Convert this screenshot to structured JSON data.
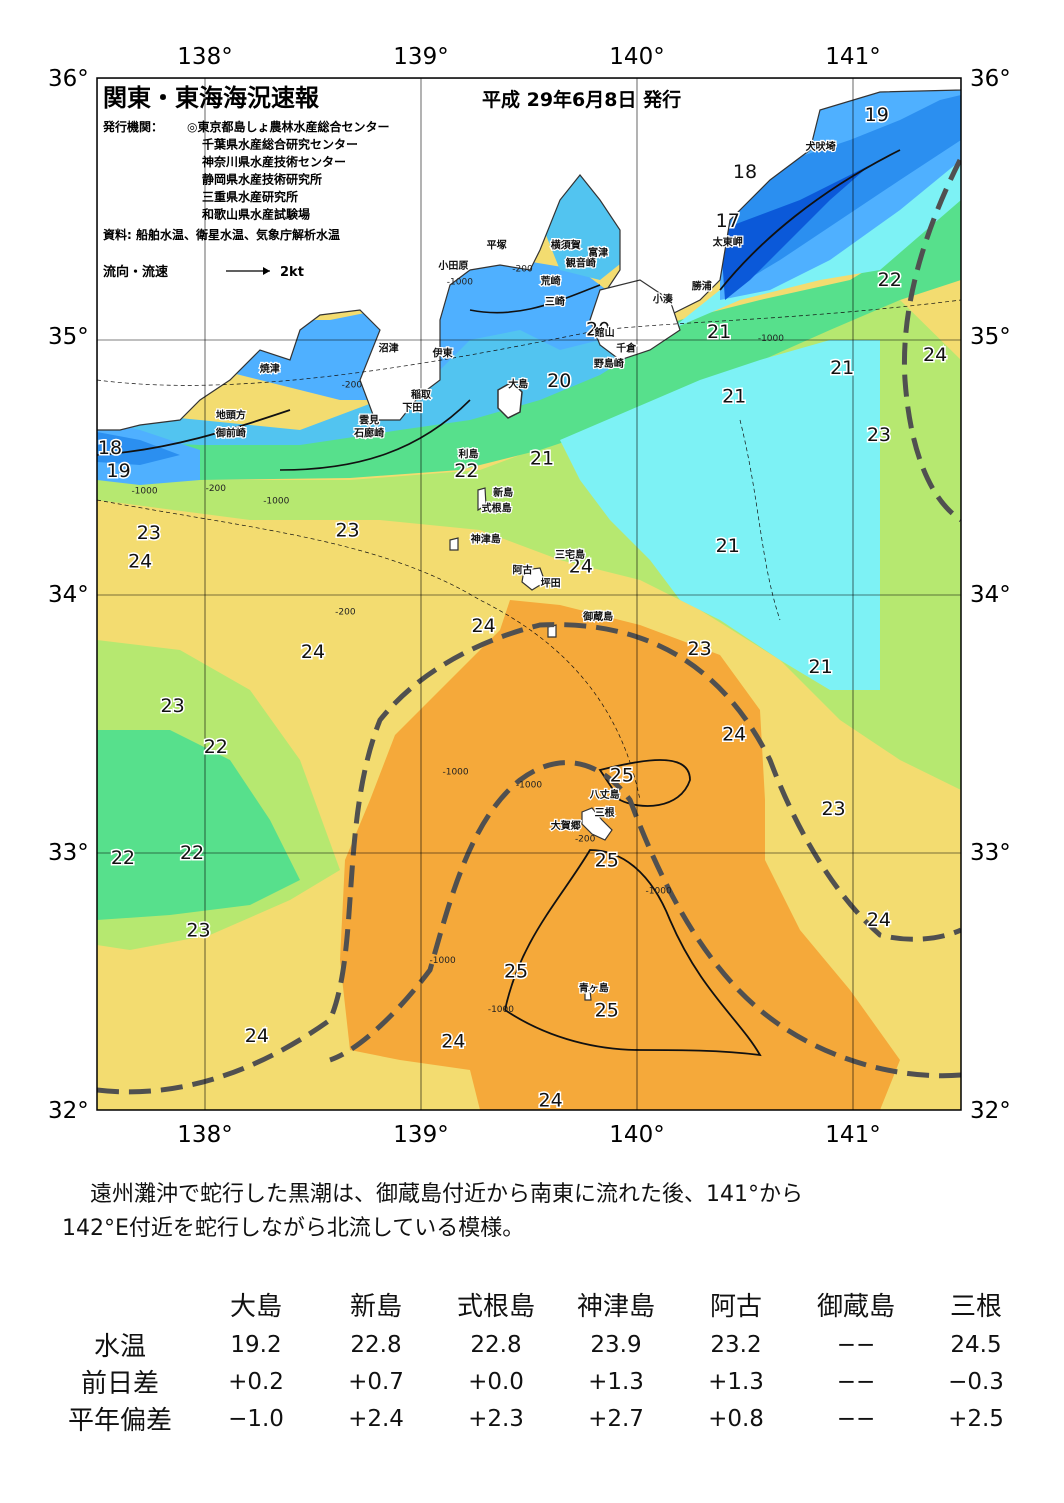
{
  "header": {
    "title": "関東・東海海況速報",
    "issue_date": "平成 29年6月8日 発行",
    "issuer_label": "発行機関：",
    "issuers": [
      "◎東京都島しょ農林水産総合センター",
      "千葉県水産総合研究センター",
      "神奈川県水産技術センター",
      "静岡県水産技術研究所",
      "三重県水産研究所",
      "和歌山県水産試験場"
    ],
    "source": "資料: 船舶水温、衛星水温、気象庁解析水温",
    "legend_label": "流向・流速",
    "legend_speed": "2kt"
  },
  "axes": {
    "lon_labels": [
      "138°",
      "139°",
      "140°",
      "141°"
    ],
    "lat_labels": [
      "36°",
      "35°",
      "34°",
      "33°",
      "32°"
    ],
    "lon_values": [
      138,
      139,
      140,
      141
    ],
    "lat_values": [
      36,
      35,
      34,
      33,
      32
    ],
    "lon_range": [
      137.5,
      141.5
    ],
    "lat_range": [
      32,
      36
    ]
  },
  "colors": {
    "t17": "#0b59d9",
    "t18": "#2b8ff0",
    "t19": "#4fb0ff",
    "t20": "#52c4f0",
    "t21": "#7df2f5",
    "t22": "#57e08c",
    "t23": "#b6e870",
    "t24": "#f3dc70",
    "t25": "#f5a93a",
    "land": "#ffffff",
    "kuroshio": "#505050"
  },
  "places": [
    {
      "name": "犬吠埼",
      "lon": 140.85,
      "lat": 35.72
    },
    {
      "name": "太東岬",
      "lon": 140.42,
      "lat": 35.35
    },
    {
      "name": "勝浦",
      "lon": 140.3,
      "lat": 35.18
    },
    {
      "name": "小湊",
      "lon": 140.12,
      "lat": 35.13
    },
    {
      "name": "富津",
      "lon": 139.82,
      "lat": 35.31
    },
    {
      "name": "横須賀",
      "lon": 139.67,
      "lat": 35.34
    },
    {
      "name": "観音崎",
      "lon": 139.74,
      "lat": 35.27
    },
    {
      "name": "平塚",
      "lon": 139.35,
      "lat": 35.34
    },
    {
      "name": "荒崎",
      "lon": 139.6,
      "lat": 35.2
    },
    {
      "name": "小田原",
      "lon": 139.15,
      "lat": 35.26
    },
    {
      "name": "三崎",
      "lon": 139.62,
      "lat": 35.12
    },
    {
      "name": "館山",
      "lon": 139.85,
      "lat": 35.0
    },
    {
      "name": "千倉",
      "lon": 139.95,
      "lat": 34.94
    },
    {
      "name": "野島崎",
      "lon": 139.87,
      "lat": 34.88
    },
    {
      "name": "沼津",
      "lon": 138.85,
      "lat": 34.94
    },
    {
      "name": "伊東",
      "lon": 139.1,
      "lat": 34.92
    },
    {
      "name": "焼津",
      "lon": 138.3,
      "lat": 34.86
    },
    {
      "name": "稲取",
      "lon": 139.0,
      "lat": 34.76
    },
    {
      "name": "下田",
      "lon": 138.96,
      "lat": 34.71
    },
    {
      "name": "雲見",
      "lon": 138.76,
      "lat": 34.66
    },
    {
      "name": "石廊崎",
      "lon": 138.76,
      "lat": 34.61
    },
    {
      "name": "地頭方",
      "lon": 138.12,
      "lat": 34.68
    },
    {
      "name": "御前崎",
      "lon": 138.12,
      "lat": 34.61
    },
    {
      "name": "大島",
      "lon": 139.45,
      "lat": 34.8
    },
    {
      "name": "利島",
      "lon": 139.22,
      "lat": 34.53
    },
    {
      "name": "新島",
      "lon": 139.38,
      "lat": 34.38
    },
    {
      "name": "式根島",
      "lon": 139.35,
      "lat": 34.32
    },
    {
      "name": "神津島",
      "lon": 139.3,
      "lat": 34.2
    },
    {
      "name": "三宅島",
      "lon": 139.69,
      "lat": 34.14
    },
    {
      "name": "阿古",
      "lon": 139.47,
      "lat": 34.08
    },
    {
      "name": "坪田",
      "lon": 139.6,
      "lat": 34.03
    },
    {
      "name": "御蔵島",
      "lon": 139.82,
      "lat": 33.9
    },
    {
      "name": "八丈島",
      "lon": 139.85,
      "lat": 33.21
    },
    {
      "name": "三根",
      "lon": 139.85,
      "lat": 33.14
    },
    {
      "name": "大賀郷",
      "lon": 139.67,
      "lat": 33.09
    },
    {
      "name": "青ヶ島",
      "lon": 139.8,
      "lat": 32.46
    }
  ],
  "temp_labels": [
    {
      "text": "19",
      "lon": 141.11,
      "lat": 35.86
    },
    {
      "text": "18",
      "lon": 140.5,
      "lat": 35.64
    },
    {
      "text": "17",
      "lon": 140.42,
      "lat": 35.45
    },
    {
      "text": "22",
      "lon": 141.17,
      "lat": 35.22
    },
    {
      "text": "21",
      "lon": 140.38,
      "lat": 35.02
    },
    {
      "text": "24",
      "lon": 141.38,
      "lat": 34.93
    },
    {
      "text": "21",
      "lon": 140.95,
      "lat": 34.88
    },
    {
      "text": "21",
      "lon": 140.45,
      "lat": 34.77
    },
    {
      "text": "23",
      "lon": 141.12,
      "lat": 34.62
    },
    {
      "text": "20",
      "lon": 139.82,
      "lat": 35.03
    },
    {
      "text": "20",
      "lon": 139.64,
      "lat": 34.83
    },
    {
      "text": "21",
      "lon": 139.56,
      "lat": 34.53
    },
    {
      "text": "22",
      "lon": 139.21,
      "lat": 34.48
    },
    {
      "text": "18",
      "lon": 137.56,
      "lat": 34.57
    },
    {
      "text": "19",
      "lon": 137.6,
      "lat": 34.48
    },
    {
      "text": "23",
      "lon": 137.74,
      "lat": 34.24
    },
    {
      "text": "23",
      "lon": 138.66,
      "lat": 34.25
    },
    {
      "text": "24",
      "lon": 137.7,
      "lat": 34.13
    },
    {
      "text": "21",
      "lon": 140.42,
      "lat": 34.19
    },
    {
      "text": "24",
      "lon": 139.74,
      "lat": 34.11
    },
    {
      "text": "24",
      "lon": 139.29,
      "lat": 33.88
    },
    {
      "text": "24",
      "lon": 138.5,
      "lat": 33.78
    },
    {
      "text": "23",
      "lon": 140.29,
      "lat": 33.79
    },
    {
      "text": "21",
      "lon": 140.85,
      "lat": 33.72
    },
    {
      "text": "23",
      "lon": 137.85,
      "lat": 33.57
    },
    {
      "text": "24",
      "lon": 140.45,
      "lat": 33.46
    },
    {
      "text": "22",
      "lon": 138.05,
      "lat": 33.41
    },
    {
      "text": "25",
      "lon": 139.93,
      "lat": 33.3
    },
    {
      "text": "23",
      "lon": 140.91,
      "lat": 33.17
    },
    {
      "text": "22",
      "lon": 137.62,
      "lat": 32.98
    },
    {
      "text": "22",
      "lon": 137.94,
      "lat": 33.0
    },
    {
      "text": "25",
      "lon": 139.86,
      "lat": 32.97
    },
    {
      "text": "24",
      "lon": 141.12,
      "lat": 32.74
    },
    {
      "text": "23",
      "lon": 137.97,
      "lat": 32.7
    },
    {
      "text": "25",
      "lon": 139.44,
      "lat": 32.54
    },
    {
      "text": "25",
      "lon": 139.86,
      "lat": 32.39
    },
    {
      "text": "24",
      "lon": 138.24,
      "lat": 32.29
    },
    {
      "text": "24",
      "lon": 139.15,
      "lat": 32.27
    },
    {
      "text": "24",
      "lon": 139.6,
      "lat": 32.04
    }
  ],
  "depth_labels": [
    {
      "text": "-200",
      "lon": 139.47,
      "lat": 35.25
    },
    {
      "text": "-1000",
      "lon": 139.18,
      "lat": 35.2
    },
    {
      "text": "-1000",
      "lon": 140.62,
      "lat": 34.98
    },
    {
      "text": "-200",
      "lon": 138.68,
      "lat": 34.8
    },
    {
      "text": "-1000",
      "lon": 137.72,
      "lat": 34.39
    },
    {
      "text": "-200",
      "lon": 138.05,
      "lat": 34.4
    },
    {
      "text": "-1000",
      "lon": 138.33,
      "lat": 34.35
    },
    {
      "text": "-200",
      "lon": 138.65,
      "lat": 33.92
    },
    {
      "text": "-1000",
      "lon": 139.16,
      "lat": 33.3
    },
    {
      "text": "-1000",
      "lon": 139.5,
      "lat": 33.25
    },
    {
      "text": "-200",
      "lon": 139.76,
      "lat": 33.04
    },
    {
      "text": "-1000",
      "lon": 140.1,
      "lat": 32.84
    },
    {
      "text": "-1000",
      "lon": 139.1,
      "lat": 32.57
    },
    {
      "text": "-1000",
      "lon": 139.37,
      "lat": 32.38
    }
  ],
  "note": [
    "遠州灘沖で蛇行した黒潮は、御蔵島付近から南東に流れた後、141°から",
    "142°E付近を蛇行しながら北流している模様。"
  ],
  "table": {
    "columns": [
      "大島",
      "新島",
      "式根島",
      "神津島",
      "阿古",
      "御蔵島",
      "三根"
    ],
    "rows": [
      {
        "label": "水温",
        "values": [
          "19.2",
          "22.8",
          "22.8",
          "23.9",
          "23.2",
          "−−",
          "24.5"
        ]
      },
      {
        "label": "前日差",
        "values": [
          "+0.2",
          "+0.7",
          "+0.0",
          "+1.3",
          "+1.3",
          "−−",
          "−0.3"
        ]
      },
      {
        "label": "平年偏差",
        "values": [
          "−1.0",
          "+2.4",
          "+2.3",
          "+2.7",
          "+0.8",
          "−−",
          "+2.5"
        ]
      }
    ]
  }
}
